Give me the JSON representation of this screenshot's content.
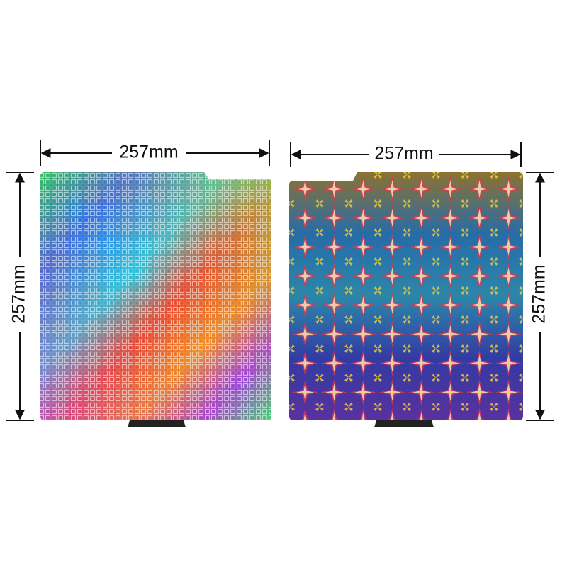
{
  "plates": [
    {
      "width_label": "257mm",
      "height_label": "257mm"
    },
    {
      "width_label": "257mm",
      "height_label": "257mm"
    }
  ]
}
